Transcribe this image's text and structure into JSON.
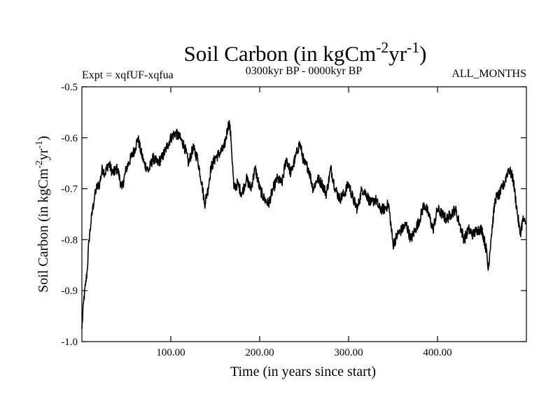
{
  "chart_data": {
    "type": "line",
    "title": {
      "prefix": "Soil Carbon (in kgCm",
      "sup1": "-2",
      "mid": "yr",
      "sup2": "-1",
      "suffix": ")"
    },
    "subtitle_left": "Expt = xqfUF-xqfua",
    "subtitle_center": "0300kyr BP - 0000kyr BP",
    "subtitle_right": "ALL_MONTHS",
    "xlabel": "Time (in years since start)",
    "ylabel": {
      "prefix": "Soil Carbon (in kgCm",
      "sup1": "-2",
      "mid": "yr",
      "sup2": "-1",
      "suffix": ")"
    },
    "xlim": [
      0,
      500
    ],
    "ylim": [
      -1.0,
      -0.5
    ],
    "xticks": [
      100,
      200,
      300,
      400
    ],
    "xtick_labels": [
      "100.00",
      "200.00",
      "300.00",
      "400.00"
    ],
    "yticks": [
      -0.5,
      -0.6,
      -0.7,
      -0.8,
      -0.9,
      -1.0
    ],
    "ytick_labels": [
      "-0.5",
      "-0.6",
      "-0.7",
      "-0.8",
      "-0.9",
      "-1.0"
    ],
    "grid": false,
    "series": [
      {
        "name": "Soil Carbon",
        "x": [
          0,
          2,
          4,
          6,
          8,
          10,
          12,
          14,
          16,
          18,
          20,
          23,
          26,
          30,
          35,
          40,
          45,
          50,
          55,
          60,
          63,
          66,
          70,
          75,
          80,
          85,
          90,
          95,
          100,
          105,
          110,
          115,
          120,
          125,
          130,
          135,
          138,
          142,
          145,
          150,
          155,
          160,
          164,
          166,
          168,
          171,
          175,
          180,
          185,
          190,
          195,
          200,
          205,
          210,
          215,
          220,
          225,
          230,
          235,
          240,
          245,
          250,
          255,
          260,
          265,
          270,
          275,
          280,
          285,
          290,
          295,
          300,
          305,
          310,
          315,
          320,
          325,
          330,
          335,
          340,
          345,
          350,
          355,
          360,
          365,
          370,
          375,
          380,
          385,
          390,
          395,
          400,
          405,
          410,
          415,
          420,
          425,
          430,
          435,
          440,
          445,
          450,
          455,
          457,
          460,
          465,
          470,
          475,
          480,
          485,
          490,
          493,
          496,
          499
        ],
        "y": [
          -0.975,
          -0.92,
          -0.89,
          -0.86,
          -0.8,
          -0.77,
          -0.74,
          -0.72,
          -0.7,
          -0.695,
          -0.69,
          -0.66,
          -0.67,
          -0.65,
          -0.67,
          -0.66,
          -0.7,
          -0.66,
          -0.64,
          -0.62,
          -0.6,
          -0.625,
          -0.65,
          -0.665,
          -0.64,
          -0.65,
          -0.64,
          -0.62,
          -0.6,
          -0.59,
          -0.6,
          -0.615,
          -0.65,
          -0.62,
          -0.64,
          -0.69,
          -0.73,
          -0.7,
          -0.66,
          -0.64,
          -0.63,
          -0.62,
          -0.58,
          -0.57,
          -0.61,
          -0.7,
          -0.69,
          -0.71,
          -0.68,
          -0.7,
          -0.66,
          -0.7,
          -0.72,
          -0.73,
          -0.7,
          -0.68,
          -0.69,
          -0.64,
          -0.67,
          -0.64,
          -0.61,
          -0.65,
          -0.66,
          -0.7,
          -0.68,
          -0.69,
          -0.71,
          -0.66,
          -0.7,
          -0.72,
          -0.71,
          -0.69,
          -0.72,
          -0.74,
          -0.7,
          -0.71,
          -0.73,
          -0.72,
          -0.74,
          -0.74,
          -0.73,
          -0.81,
          -0.79,
          -0.78,
          -0.77,
          -0.8,
          -0.78,
          -0.76,
          -0.73,
          -0.75,
          -0.78,
          -0.74,
          -0.75,
          -0.76,
          -0.75,
          -0.74,
          -0.77,
          -0.8,
          -0.78,
          -0.79,
          -0.78,
          -0.78,
          -0.82,
          -0.86,
          -0.8,
          -0.72,
          -0.71,
          -0.69,
          -0.66,
          -0.68,
          -0.75,
          -0.79,
          -0.76,
          -0.77
        ]
      }
    ]
  }
}
